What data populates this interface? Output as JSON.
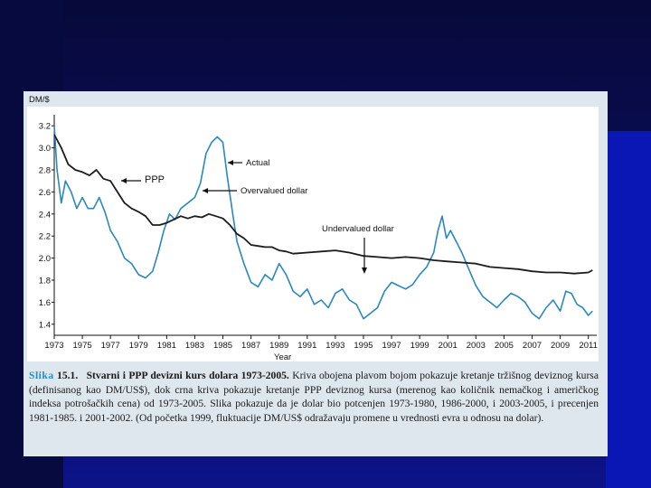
{
  "colors": {
    "actual": "#2b87bf",
    "ppp": "#1c1c1c",
    "caption_label": "#2a8cbf"
  },
  "chart_data": {
    "type": "line",
    "ylabel": "DM/$",
    "xlabel": "Year",
    "ylim": [
      1.3,
      3.3
    ],
    "xlim": [
      1973,
      2011.6
    ],
    "y_ticks": [
      1.4,
      1.6,
      1.8,
      2.0,
      2.2,
      2.4,
      2.6,
      2.8,
      3.0,
      3.2
    ],
    "y_tick_labels": [
      "1.4",
      "1.6",
      "1.8",
      "2.0",
      "2.2",
      "2.4",
      "2.6",
      "2.8",
      "3.0",
      "3.2"
    ],
    "x_ticks": [
      1973,
      1975,
      1977,
      1979,
      1981,
      1983,
      1985,
      1987,
      1989,
      1991,
      1993,
      1995,
      1997,
      1999,
      2001,
      2003,
      2005,
      2007,
      2009,
      2011
    ],
    "x_tick_labels": [
      "1973",
      "1975",
      "1977",
      "1979",
      "1981",
      "1983",
      "1985",
      "1987",
      "1989",
      "1991",
      "1993",
      "1995",
      "1997",
      "1999",
      "2001",
      "2003",
      "2005",
      "2007",
      "2009",
      "2011"
    ],
    "grid": false,
    "series": [
      {
        "name": "Actual",
        "color": "#2b87bf",
        "x": [
          1973,
          1973.2,
          1973.5,
          1973.8,
          1974.2,
          1974.6,
          1975,
          1975.4,
          1975.8,
          1976.2,
          1976.6,
          1977,
          1977.5,
          1978,
          1978.5,
          1979,
          1979.5,
          1980,
          1980.4,
          1980.8,
          1981.2,
          1981.6,
          1982,
          1982.5,
          1983,
          1983.4,
          1983.8,
          1984.2,
          1984.6,
          1985,
          1985.3,
          1985.7,
          1986,
          1986.5,
          1987,
          1987.5,
          1988,
          1988.5,
          1989,
          1989.5,
          1990,
          1990.5,
          1991,
          1991.5,
          1992,
          1992.5,
          1993,
          1993.5,
          1994,
          1994.5,
          1995,
          1995.5,
          1996,
          1996.5,
          1997,
          1997.5,
          1998,
          1998.5,
          1999,
          1999.5,
          2000,
          2000.3,
          2000.6,
          2000.9,
          2001.2,
          2001.6,
          2002,
          2002.5,
          2003,
          2003.5,
          2004,
          2004.5,
          2005,
          2005.5,
          2006,
          2006.5,
          2007,
          2007.5,
          2008,
          2008.5,
          2009,
          2009.4,
          2009.8,
          2010.2,
          2010.6,
          2011,
          2011.3
        ],
        "y": [
          3.2,
          2.8,
          2.5,
          2.7,
          2.6,
          2.45,
          2.55,
          2.45,
          2.45,
          2.55,
          2.42,
          2.25,
          2.15,
          2.0,
          1.95,
          1.85,
          1.82,
          1.88,
          2.05,
          2.25,
          2.4,
          2.35,
          2.45,
          2.5,
          2.55,
          2.68,
          2.95,
          3.05,
          3.1,
          3.05,
          2.75,
          2.4,
          2.15,
          1.95,
          1.78,
          1.74,
          1.85,
          1.8,
          1.95,
          1.85,
          1.7,
          1.65,
          1.72,
          1.58,
          1.62,
          1.55,
          1.68,
          1.72,
          1.62,
          1.58,
          1.45,
          1.5,
          1.55,
          1.7,
          1.78,
          1.75,
          1.72,
          1.76,
          1.85,
          1.92,
          2.05,
          2.25,
          2.38,
          2.18,
          2.25,
          2.15,
          2.05,
          1.9,
          1.75,
          1.65,
          1.6,
          1.55,
          1.62,
          1.68,
          1.65,
          1.6,
          1.5,
          1.45,
          1.55,
          1.62,
          1.52,
          1.7,
          1.68,
          1.58,
          1.55,
          1.48,
          1.52
        ]
      },
      {
        "name": "PPP",
        "color": "#1c1c1c",
        "x": [
          1973,
          1973.5,
          1974,
          1974.5,
          1975,
          1975.5,
          1976,
          1976.5,
          1977,
          1977.5,
          1978,
          1978.5,
          1979,
          1979.5,
          1980,
          1980.5,
          1981,
          1981.5,
          1982,
          1982.5,
          1983,
          1983.5,
          1984,
          1984.5,
          1985,
          1985.5,
          1986,
          1986.5,
          1987,
          1987.5,
          1988,
          1988.5,
          1989,
          1989.5,
          1990,
          1991,
          1992,
          1993,
          1994,
          1995,
          1996,
          1997,
          1998,
          1999,
          2000,
          2001,
          2002,
          2003,
          2004,
          2005,
          2006,
          2007,
          2008,
          2009,
          2010,
          2011,
          2011.3
        ],
        "y": [
          3.12,
          3.0,
          2.85,
          2.8,
          2.78,
          2.75,
          2.8,
          2.72,
          2.7,
          2.6,
          2.5,
          2.45,
          2.42,
          2.38,
          2.3,
          2.3,
          2.32,
          2.35,
          2.38,
          2.36,
          2.38,
          2.37,
          2.4,
          2.38,
          2.36,
          2.3,
          2.22,
          2.18,
          2.12,
          2.11,
          2.1,
          2.1,
          2.07,
          2.06,
          2.04,
          2.05,
          2.06,
          2.07,
          2.05,
          2.02,
          2.01,
          2.0,
          2.01,
          2.0,
          1.98,
          1.97,
          1.96,
          1.95,
          1.92,
          1.91,
          1.9,
          1.88,
          1.87,
          1.87,
          1.86,
          1.87,
          1.89
        ]
      }
    ],
    "annotations": [
      {
        "text": "Actual"
      },
      {
        "text": "PPP"
      },
      {
        "text": "Overvalued dollar"
      },
      {
        "text": "Undervalued dollar"
      }
    ]
  },
  "caption": {
    "label": "Slika",
    "number": "15.1.",
    "bold_title": "Stvarni i PPP devizni kurs dolara 1973-2005.",
    "body": "Kriva obojena plavom bojom pokazuje kretanje tržišnog deviznog kursa (definisanog kao DM/US$), dok crna kriva pokazuje kretanje PPP deviznog kursa (merenog kao količnik nemačkog i američkog indeksa potrošačkih cena) od 1973-2005. Slika pokazuje da je dolar bio potcenjen 1973-1980, 1986-2000, i 2003-2005, i precenjen 1981-1985. i 2001-2002. (Od početka 1999, fluktuacije DM/US$ odražavaju promene u vrednosti evra u odnosu na dolar)."
  }
}
